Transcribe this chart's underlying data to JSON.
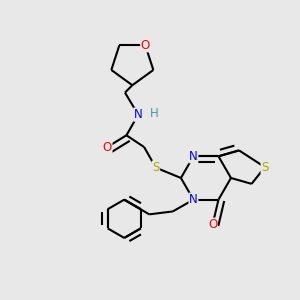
{
  "bg_color": "#e8e8e8",
  "bond_color": "#000000",
  "atom_colors": {
    "O": "#ff0000",
    "N": "#0000ff",
    "S": "#aaaa00",
    "H": "#4a9a9a",
    "C": "#000000"
  },
  "font_size": 8.5
}
